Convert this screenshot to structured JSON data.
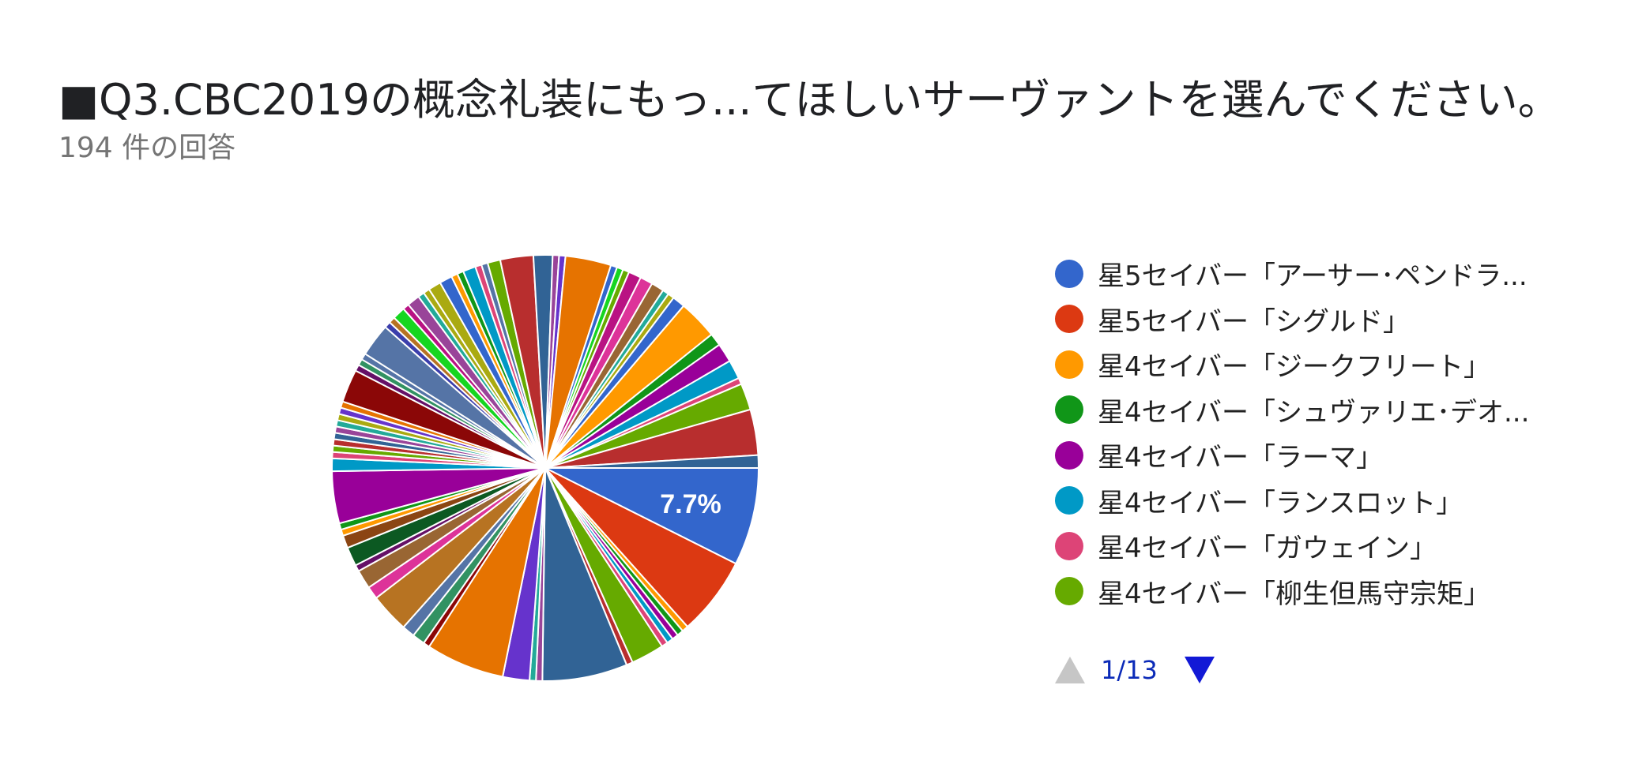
{
  "title": "■Q3.CBC2019の概念礼装にもっ...てほしいサーヴァントを選んでください。",
  "subtitle": "194 件の回答",
  "chart_data": {
    "type": "pie",
    "title": "■Q3.CBC2019の概念礼装にもっ...てほしいサーヴァントを選んでください。",
    "subtitle": "194 件の回答",
    "visible_slice_label": "7.7%",
    "legend": [
      {
        "label": "星5セイバー「アーサー･ペンドラ...",
        "color": "#3366cc"
      },
      {
        "label": "星5セイバー「シグルド」",
        "color": "#dc3912"
      },
      {
        "label": "星4セイバー「ジークフリート」",
        "color": "#ff9900"
      },
      {
        "label": "星4セイバー「シュヴァリエ･デオ...",
        "color": "#109618"
      },
      {
        "label": "星4セイバー「ラーマ」",
        "color": "#990099"
      },
      {
        "label": "星4セイバー「ランスロット」",
        "color": "#0099c6"
      },
      {
        "label": "星4セイバー「ガウェイン」",
        "color": "#dd4477"
      },
      {
        "label": "星4セイバー「柳生但馬守宗矩」",
        "color": "#66aa00"
      }
    ],
    "slices": [
      {
        "percent": 7.7,
        "color": "#3366cc"
      },
      {
        "percent": 6.2,
        "color": "#dc3912"
      },
      {
        "percent": 0.5,
        "color": "#ff9900"
      },
      {
        "percent": 0.5,
        "color": "#109618"
      },
      {
        "percent": 0.5,
        "color": "#990099"
      },
      {
        "percent": 0.5,
        "color": "#0099c6"
      },
      {
        "percent": 0.5,
        "color": "#dd4477"
      },
      {
        "percent": 2.6,
        "color": "#66aa00"
      },
      {
        "percent": 0.5,
        "color": "#b82e2e"
      },
      {
        "percent": 6.7,
        "color": "#316395"
      },
      {
        "percent": 0.5,
        "color": "#994499"
      },
      {
        "percent": 0.5,
        "color": "#22aa99"
      },
      {
        "percent": 2.1,
        "color": "#6633cc"
      },
      {
        "percent": 6.2,
        "color": "#e67300"
      },
      {
        "percent": 0.5,
        "color": "#8b0707"
      },
      {
        "percent": 1.0,
        "color": "#329262"
      },
      {
        "percent": 1.0,
        "color": "#5574a6"
      },
      {
        "percent": 3.1,
        "color": "#b77322"
      },
      {
        "percent": 1.0,
        "color": "#dd3399"
      },
      {
        "percent": 1.5,
        "color": "#996633"
      },
      {
        "percent": 0.5,
        "color": "#651067"
      },
      {
        "percent": 1.5,
        "color": "#0c5922"
      },
      {
        "percent": 1.0,
        "color": "#8b4513"
      },
      {
        "percent": 0.5,
        "color": "#ff9900"
      },
      {
        "percent": 0.5,
        "color": "#109618"
      },
      {
        "percent": 4.1,
        "color": "#990099"
      },
      {
        "percent": 1.0,
        "color": "#0099c6"
      },
      {
        "percent": 0.5,
        "color": "#dd4477"
      },
      {
        "percent": 0.5,
        "color": "#66aa00"
      },
      {
        "percent": 0.5,
        "color": "#b82e2e"
      },
      {
        "percent": 0.5,
        "color": "#316395"
      },
      {
        "percent": 0.5,
        "color": "#994499"
      },
      {
        "percent": 0.5,
        "color": "#22aa99"
      },
      {
        "percent": 0.5,
        "color": "#aaaa11"
      },
      {
        "percent": 0.5,
        "color": "#6633cc"
      },
      {
        "percent": 0.5,
        "color": "#e67300"
      },
      {
        "percent": 2.6,
        "color": "#8b0707"
      },
      {
        "percent": 0.5,
        "color": "#651067"
      },
      {
        "percent": 0.5,
        "color": "#329262"
      },
      {
        "percent": 0.5,
        "color": "#5574a6"
      },
      {
        "percent": 2.6,
        "color": "#5574a6"
      },
      {
        "percent": 0.5,
        "color": "#3b3eac"
      },
      {
        "percent": 0.5,
        "color": "#b77322"
      },
      {
        "percent": 1.0,
        "color": "#16d620"
      },
      {
        "percent": 0.5,
        "color": "#b91383"
      },
      {
        "percent": 1.0,
        "color": "#994499"
      },
      {
        "percent": 0.5,
        "color": "#22aa99"
      },
      {
        "percent": 0.5,
        "color": "#aaaa11"
      },
      {
        "percent": 1.0,
        "color": "#aaaa11"
      },
      {
        "percent": 1.0,
        "color": "#3366cc"
      },
      {
        "percent": 0.5,
        "color": "#ff9900"
      },
      {
        "percent": 0.5,
        "color": "#109618"
      },
      {
        "percent": 1.0,
        "color": "#0099c6"
      },
      {
        "percent": 0.5,
        "color": "#dd4477"
      },
      {
        "percent": 0.5,
        "color": "#5574a6"
      },
      {
        "percent": 1.0,
        "color": "#66aa00"
      },
      {
        "percent": 2.6,
        "color": "#b82e2e"
      },
      {
        "percent": 1.5,
        "color": "#316395"
      },
      {
        "percent": 0.5,
        "color": "#994499"
      },
      {
        "percent": 0.5,
        "color": "#6633cc"
      },
      {
        "percent": 3.6,
        "color": "#e67300"
      },
      {
        "percent": 0.5,
        "color": "#3366cc"
      },
      {
        "percent": 0.5,
        "color": "#16d620"
      },
      {
        "percent": 0.5,
        "color": "#66aa00"
      },
      {
        "percent": 1.0,
        "color": "#b91383"
      },
      {
        "percent": 1.0,
        "color": "#dd3399"
      },
      {
        "percent": 1.0,
        "color": "#996633"
      },
      {
        "percent": 0.5,
        "color": "#22aa99"
      },
      {
        "percent": 0.5,
        "color": "#aaaa11"
      },
      {
        "percent": 1.0,
        "color": "#3366cc"
      },
      {
        "percent": 3.1,
        "color": "#ff9900"
      },
      {
        "percent": 1.0,
        "color": "#109618"
      },
      {
        "percent": 1.5,
        "color": "#990099"
      },
      {
        "percent": 1.5,
        "color": "#0099c6"
      },
      {
        "percent": 0.5,
        "color": "#dd4477"
      },
      {
        "percent": 2.1,
        "color": "#66aa00"
      },
      {
        "percent": 3.6,
        "color": "#b82e2e"
      },
      {
        "percent": 1.0,
        "color": "#316395"
      }
    ]
  },
  "legend_items": [
    {
      "label": "星5セイバー「アーサー･ペンドラ...",
      "color": "#3366cc"
    },
    {
      "label": "星5セイバー「シグルド」",
      "color": "#dc3912"
    },
    {
      "label": "星4セイバー「ジークフリート」",
      "color": "#ff9900"
    },
    {
      "label": "星4セイバー「シュヴァリエ･デオ...",
      "color": "#109618"
    },
    {
      "label": "星4セイバー「ラーマ」",
      "color": "#990099"
    },
    {
      "label": "星4セイバー「ランスロット」",
      "color": "#0099c6"
    },
    {
      "label": "星4セイバー「ガウェイン」",
      "color": "#dd4477"
    },
    {
      "label": "星4セイバー「柳生但馬守宗矩」",
      "color": "#66aa00"
    }
  ],
  "pager": {
    "text": "1/13",
    "prev_icon": "triangle-up-icon",
    "next_icon": "triangle-down-icon"
  }
}
